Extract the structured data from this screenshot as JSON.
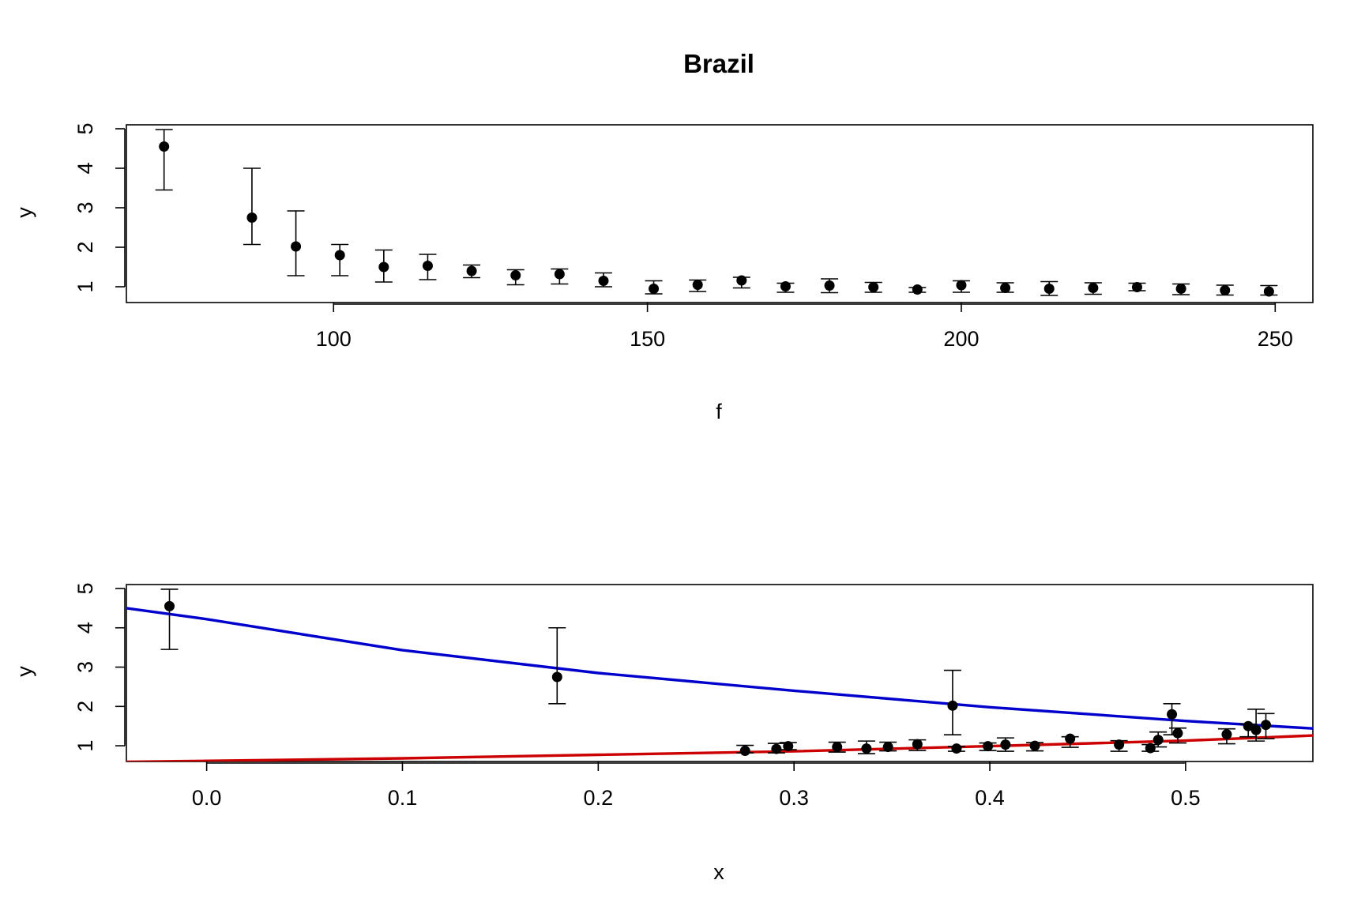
{
  "chart_data": [
    {
      "type": "scatter",
      "title": "Brazil",
      "xlabel": "f",
      "ylabel": "y",
      "xlim": [
        67,
        256
      ],
      "ylim": [
        0.6,
        5.1
      ],
      "xticks": [
        100,
        150,
        200,
        250
      ],
      "yticks": [
        1,
        2,
        3,
        4,
        5
      ],
      "grid": false,
      "points": [
        {
          "x": 73,
          "y": 4.55,
          "lo": 3.45,
          "hi": 4.98
        },
        {
          "x": 87,
          "y": 2.75,
          "lo": 2.07,
          "hi": 4.0
        },
        {
          "x": 94,
          "y": 2.02,
          "lo": 1.28,
          "hi": 2.92
        },
        {
          "x": 101,
          "y": 1.8,
          "lo": 1.28,
          "hi": 2.07
        },
        {
          "x": 108,
          "y": 1.5,
          "lo": 1.12,
          "hi": 1.93
        },
        {
          "x": 115,
          "y": 1.53,
          "lo": 1.18,
          "hi": 1.82
        },
        {
          "x": 122,
          "y": 1.4,
          "lo": 1.23,
          "hi": 1.55
        },
        {
          "x": 129,
          "y": 1.29,
          "lo": 1.05,
          "hi": 1.43
        },
        {
          "x": 136,
          "y": 1.32,
          "lo": 1.07,
          "hi": 1.45
        },
        {
          "x": 143,
          "y": 1.15,
          "lo": 1.0,
          "hi": 1.35
        },
        {
          "x": 151,
          "y": 0.95,
          "lo": 0.82,
          "hi": 1.15
        },
        {
          "x": 158,
          "y": 1.05,
          "lo": 0.88,
          "hi": 1.17
        },
        {
          "x": 165,
          "y": 1.16,
          "lo": 0.97,
          "hi": 1.24
        },
        {
          "x": 172,
          "y": 1.01,
          "lo": 0.86,
          "hi": 1.09
        },
        {
          "x": 179,
          "y": 1.03,
          "lo": 0.85,
          "hi": 1.2
        },
        {
          "x": 186,
          "y": 0.99,
          "lo": 0.86,
          "hi": 1.11
        },
        {
          "x": 193,
          "y": 0.93,
          "lo": 0.86,
          "hi": 0.98
        },
        {
          "x": 200,
          "y": 1.04,
          "lo": 0.86,
          "hi": 1.15
        },
        {
          "x": 207,
          "y": 0.97,
          "lo": 0.86,
          "hi": 1.1
        },
        {
          "x": 214,
          "y": 0.95,
          "lo": 0.78,
          "hi": 1.13
        },
        {
          "x": 221,
          "y": 0.97,
          "lo": 0.81,
          "hi": 1.1
        },
        {
          "x": 228,
          "y": 0.99,
          "lo": 0.9,
          "hi": 1.09
        },
        {
          "x": 235,
          "y": 0.95,
          "lo": 0.8,
          "hi": 1.07
        },
        {
          "x": 242,
          "y": 0.91,
          "lo": 0.79,
          "hi": 1.04
        },
        {
          "x": 249,
          "y": 0.88,
          "lo": 0.79,
          "hi": 1.03
        }
      ]
    },
    {
      "type": "scatter",
      "title": "",
      "xlabel": "x",
      "ylabel": "y",
      "xlim": [
        -0.041,
        0.565
      ],
      "ylim": [
        0.6,
        5.1
      ],
      "xticks": [
        0.0,
        0.1,
        0.2,
        0.3,
        0.4,
        0.5
      ],
      "xtick_labels": [
        "0.0",
        "0.1",
        "0.2",
        "0.3",
        "0.4",
        "0.5"
      ],
      "yticks": [
        1,
        2,
        3,
        4,
        5
      ],
      "grid": false,
      "points": [
        {
          "x": -0.019,
          "y": 4.55,
          "lo": 3.45,
          "hi": 4.98
        },
        {
          "x": 0.179,
          "y": 2.75,
          "lo": 2.07,
          "hi": 4.0
        },
        {
          "x": 0.381,
          "y": 2.02,
          "lo": 1.28,
          "hi": 2.92
        },
        {
          "x": 0.493,
          "y": 1.8,
          "lo": 1.28,
          "hi": 2.07
        },
        {
          "x": 0.536,
          "y": 1.4,
          "lo": 1.12,
          "hi": 1.93
        },
        {
          "x": 0.541,
          "y": 1.53,
          "lo": 1.18,
          "hi": 1.82
        },
        {
          "x": 0.441,
          "y": 1.18,
          "lo": 0.96,
          "hi": 1.23
        },
        {
          "x": 0.521,
          "y": 1.29,
          "lo": 1.05,
          "hi": 1.43
        },
        {
          "x": 0.496,
          "y": 1.32,
          "lo": 1.07,
          "hi": 1.45
        },
        {
          "x": 0.532,
          "y": 1.5,
          "lo": 1.23,
          "hi": 1.55
        },
        {
          "x": 0.486,
          "y": 1.15,
          "lo": 0.97,
          "hi": 1.35
        },
        {
          "x": 0.275,
          "y": 0.87,
          "lo": 0.82,
          "hi": 1.01
        },
        {
          "x": 0.291,
          "y": 0.92,
          "lo": 0.82,
          "hi": 1.06
        },
        {
          "x": 0.297,
          "y": 0.99,
          "lo": 0.9,
          "hi": 1.08
        },
        {
          "x": 0.322,
          "y": 0.97,
          "lo": 0.84,
          "hi": 1.09
        },
        {
          "x": 0.337,
          "y": 0.93,
          "lo": 0.8,
          "hi": 1.12
        },
        {
          "x": 0.348,
          "y": 0.97,
          "lo": 0.87,
          "hi": 1.09
        },
        {
          "x": 0.363,
          "y": 1.04,
          "lo": 0.88,
          "hi": 1.15
        },
        {
          "x": 0.383,
          "y": 0.93,
          "lo": 0.86,
          "hi": 0.98
        },
        {
          "x": 0.399,
          "y": 0.99,
          "lo": 0.88,
          "hi": 1.07
        },
        {
          "x": 0.408,
          "y": 1.03,
          "lo": 0.86,
          "hi": 1.2
        },
        {
          "x": 0.423,
          "y": 1.0,
          "lo": 0.87,
          "hi": 1.08
        },
        {
          "x": 0.466,
          "y": 1.03,
          "lo": 0.86,
          "hi": 1.13
        },
        {
          "x": 0.482,
          "y": 0.94,
          "lo": 0.86,
          "hi": 1.03
        }
      ],
      "curves": [
        {
          "color": "#0000cd",
          "points": [
            [
              -0.041,
              4.5
            ],
            [
              0.0,
              4.22
            ],
            [
              0.1,
              3.43
            ],
            [
              0.2,
              2.85
            ],
            [
              0.3,
              2.4
            ],
            [
              0.4,
              1.98
            ],
            [
              0.5,
              1.63
            ],
            [
              0.565,
              1.44
            ]
          ]
        },
        {
          "color": "#cd0000",
          "points": [
            [
              -0.041,
              0.59
            ],
            [
              0.1,
              0.68
            ],
            [
              0.2,
              0.77
            ],
            [
              0.3,
              0.86
            ],
            [
              0.4,
              0.99
            ],
            [
              0.5,
              1.13
            ],
            [
              0.565,
              1.26
            ]
          ]
        }
      ]
    }
  ]
}
